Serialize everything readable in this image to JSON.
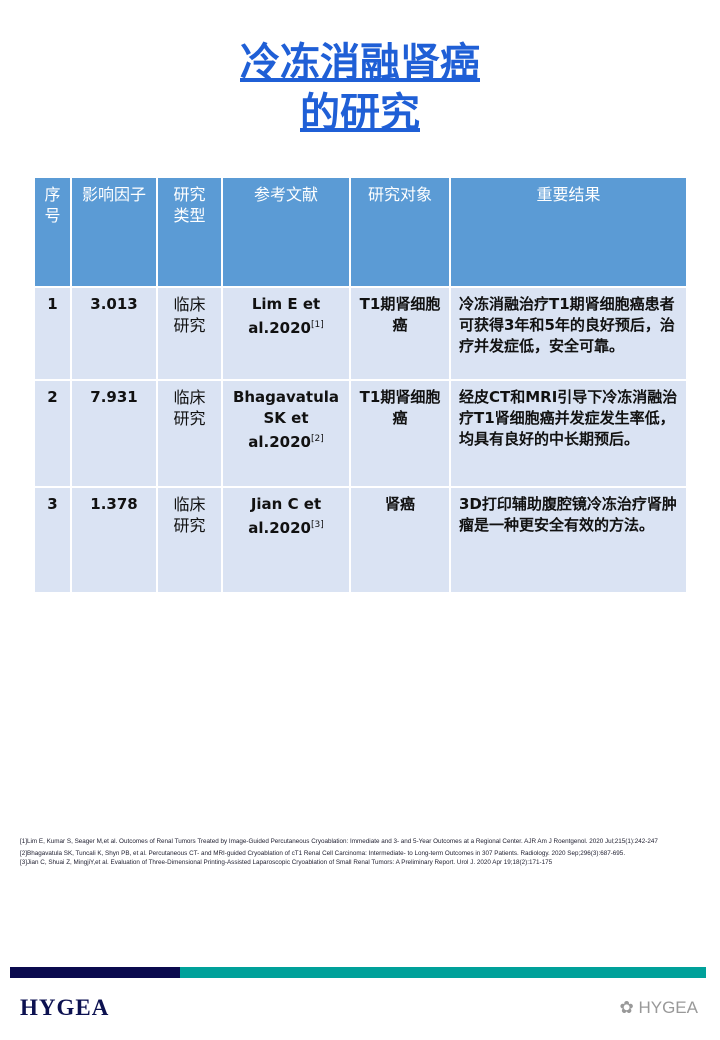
{
  "title": {
    "line1": "冷冻消融肾癌",
    "line2": "的研究"
  },
  "table": {
    "headers": [
      "序号",
      "影响因子",
      "研究类型",
      "参考文献",
      "研究对象",
      "重要结果"
    ],
    "rows": [
      {
        "no": "1",
        "if": "3.013",
        "type": "临床研究",
        "ref": "Lim E et al.2020",
        "ref_sup": "[1]",
        "subject": "T1期肾细胞癌",
        "result": "冷冻消融治疗T1期肾细胞癌患者可获得3年和5年的良好预后，治疗并发症低，安全可靠。"
      },
      {
        "no": "2",
        "if": "7.931",
        "type": "临床研究",
        "ref": "Bhagavatula SK et al.2020",
        "ref_sup": "[2]",
        "subject": "T1期肾细胞癌",
        "result": "经皮CT和MRI引导下冷冻消融治疗T1肾细胞癌并发症发生率低，均具有良好的中长期预后。"
      },
      {
        "no": "3",
        "if": "1.378",
        "type": "临床研究",
        "ref": "Jian C et al.2020",
        "ref_sup": "[3]",
        "subject": "肾癌",
        "result": "3D打印辅助腹腔镜冷冻治疗肾肿瘤是一种更安全有效的方法。"
      }
    ]
  },
  "references": [
    "[1]Lim E, Kumar S, Seager M,et al. Outcomes of Renal Tumors Treated by Image-Guided Percutaneous Cryoablation: Immediate and 3- and 5-Year Outcomes at a Regional Center. AJR Am J Roentgenol. 2020 Jul;215(1):242-247",
    "[2]Bhagavatula SK, Tuncali K, Shyn PB, et al. Percutaneous CT- and MRI-guided Cryoablation of cT1 Renal Cell Carcinoma: Intermediate- to Long-term Outcomes in 307 Patients. Radiology. 2020 Sep;296(3):687-695.",
    "[3]Jian C, Shuai Z, MingjiY,et al. Evaluation of Three-Dimensional Printing-Assisted Laparoscopic Cryoablation of Small Renal Tumors: A Preliminary Report. Urol J. 2020 Apr 19;18(2):171-175"
  ],
  "footer": {
    "logo": "HYGEA",
    "watermark": "HYGEA"
  },
  "colors": {
    "title": "#1f5fd6",
    "header": "#5b9bd5",
    "cell": "#dae3f3",
    "navy": "#0a0a4e",
    "teal": "#00a19a"
  }
}
